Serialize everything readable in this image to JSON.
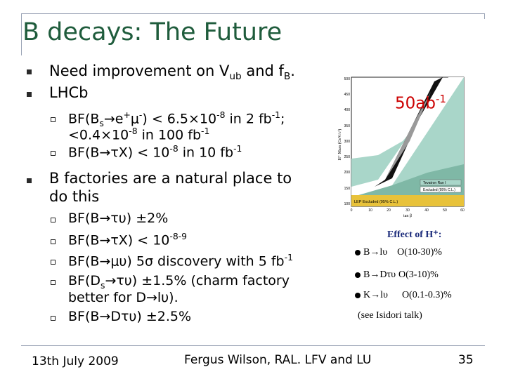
{
  "slide": {
    "title": "B decays: The Future",
    "bullets": {
      "b1": "Need improvement on V",
      "b1_sub1": "ub",
      "b1_mid": " and f",
      "b1_sub2": "B",
      "b1_end": ".",
      "b2": "LHCb",
      "b2_s1_a": "BF(B",
      "b2_s1_sub": "s",
      "b2_s1_b": "→e",
      "b2_s1_sup1": "+",
      "b2_s1_c": "μ",
      "b2_s1_sup2": "-",
      "b2_s1_d": ") < 6.5×10",
      "b2_s1_sup3": "-8",
      "b2_s1_e": " in 2 fb",
      "b2_s1_sup4": "-1",
      "b2_s1_f": ";",
      "b2_s1_g": "<0.4×10",
      "b2_s1_sup5": "-8",
      "b2_s1_h": " in 100 fb",
      "b2_s1_sup6": "-1",
      "b2_s2_a": "BF(B→τX) < 10",
      "b2_s2_sup": "-8",
      "b2_s2_b": " in 10 fb",
      "b2_s2_sup2": "-1",
      "b3_line1": "B factories are a natural place to",
      "b3_line2": "do this",
      "b3_s1": "BF(B→τυ)  ±2%",
      "b3_s2_a": "BF(B→τX) < 10",
      "b3_s2_sup": "-8-9",
      "b3_s3_a": "BF(B→μυ) 5σ discovery with 5 fb",
      "b3_s3_sup": "-1",
      "b3_s4_a": "BF(D",
      "b3_s4_sub": "s",
      "b3_s4_b": "→τυ)  ±1.5% (charm factory",
      "b3_s4_line2": "better for D→lυ).",
      "b3_s5": "BF(B→Dτυ) ±2.5%"
    },
    "plot": {
      "label": "50ab-1",
      "label_main": "50ab",
      "label_sup": "-1",
      "y_axis_label": "H⁺ Mass (GeV/c²)",
      "x_axis_label": "tan β",
      "y_ticks": [
        "500",
        "450",
        "400",
        "350",
        "300",
        "250",
        "200",
        "150",
        "100"
      ],
      "x_ticks": [
        "0",
        "10",
        "20",
        "30",
        "40",
        "50",
        "60"
      ],
      "legend": [
        "Tevatron Run I",
        "Excluded (95% C.L.)"
      ],
      "bottom_box": "LEP Excluded (95% C.L.)"
    },
    "effect": {
      "title": "Effect of H⁺:",
      "line1_a": "B→lυ",
      "line1_b": "O(10-30)%",
      "line2_a": "B→Dτυ",
      "line2_b": "O(3-10)%",
      "line3_a": "K→lυ",
      "line3_b": "O(0.1-0.3)%",
      "line4": "(see Isidori talk)"
    },
    "footer": {
      "date": "13th July 2009",
      "author": "Fergus Wilson, RAL. LFV and LU",
      "page": "35"
    }
  }
}
